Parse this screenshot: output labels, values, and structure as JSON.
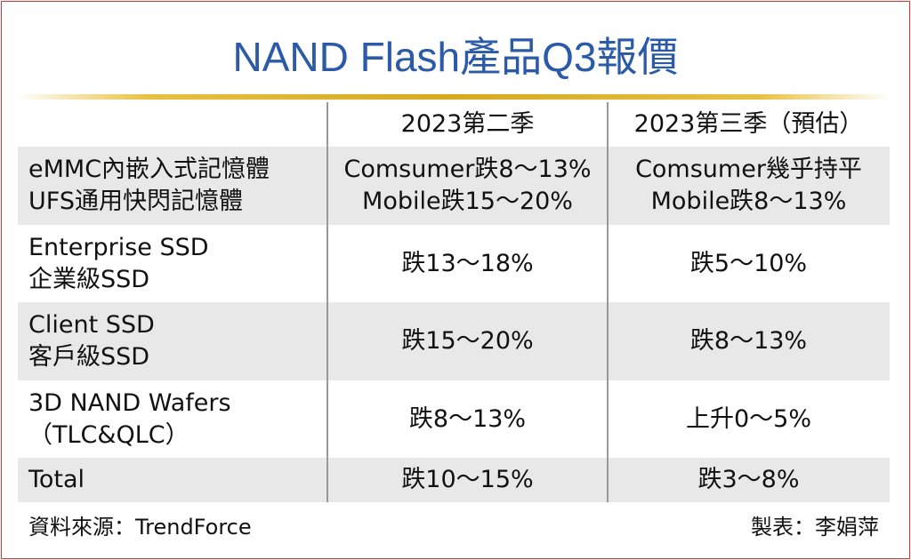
{
  "header": {
    "title": "NAND Flash產品Q3報價"
  },
  "table": {
    "columns": [
      "2023第二季",
      "2023第三季（預估）"
    ],
    "rows": [
      [
        [
          "eMMC內嵌入式記憶體",
          "UFS通用快閃記憶體"
        ],
        [
          "Comsumer跌8～13%",
          "Mobile跌15～20%"
        ],
        [
          "Comsumer幾乎持平",
          "Mobile跌8～13%"
        ]
      ],
      [
        [
          "Enterprise SSD",
          "企業級SSD"
        ],
        [
          "跌13～18%"
        ],
        [
          "跌5～10%"
        ]
      ],
      [
        [
          "Client SSD",
          "客戶級SSD"
        ],
        [
          "跌15～20%"
        ],
        [
          "跌8～13%"
        ]
      ],
      [
        [
          "3D NAND Wafers",
          "（TLC&QLC）"
        ],
        [
          "跌8～13%"
        ],
        [
          "上升0～5%"
        ]
      ],
      [
        [
          "Total"
        ],
        [
          "跌10～15%"
        ],
        [
          "跌3～8%"
        ]
      ]
    ]
  },
  "footer": {
    "source": "資料來源：TrendForce",
    "credit": "製表：李娟萍"
  }
}
